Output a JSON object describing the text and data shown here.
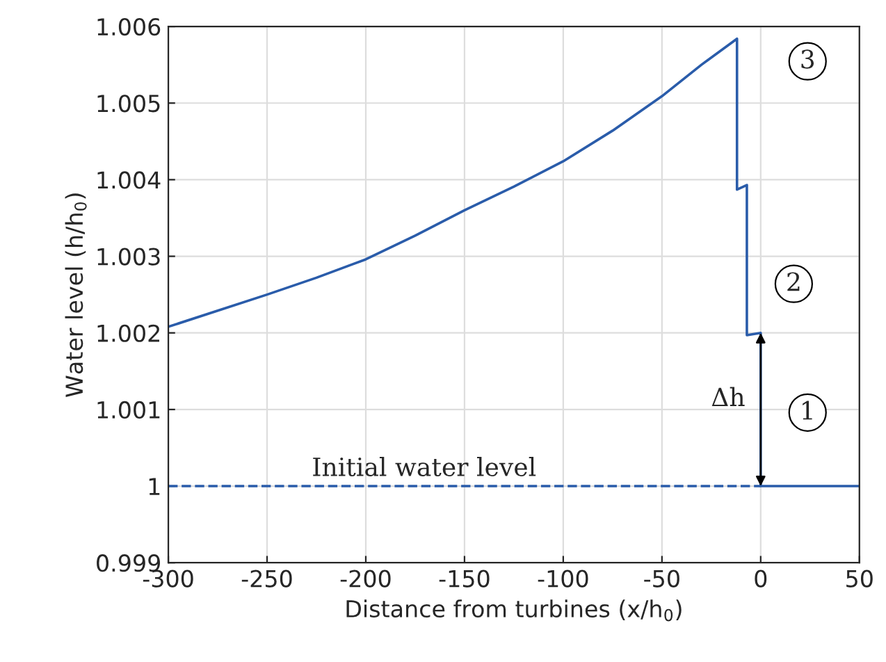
{
  "chart_data": {
    "type": "line",
    "xlabel": "Distance from turbines (x/h$_{0}$)",
    "ylabel": "Water level (h/h$_{0}$)",
    "series": [
      {
        "color": "#2a5caa",
        "line_style": "solid",
        "x": [
          -300,
          -275,
          -250,
          -225,
          -200,
          -175,
          -150,
          -125,
          -100,
          -75,
          -50,
          -30,
          -12,
          -12,
          -7,
          -7,
          0,
          0,
          50
        ],
        "values": [
          1.00208,
          1.00229,
          1.0025,
          1.00272,
          1.00296,
          1.00327,
          1.0036,
          1.00391,
          1.00424,
          1.00464,
          1.00509,
          1.0055,
          1.00584,
          1.00387,
          1.00393,
          1.00197,
          1.002,
          1.0,
          1.0
        ]
      },
      {
        "color": "#2a5caa",
        "line_style": "dashed",
        "x": [
          -300,
          0
        ],
        "values": [
          1.0,
          1.0
        ]
      }
    ],
    "annotations": [
      "Initial water level",
      "Δh",
      "1",
      "2",
      "3"
    ],
    "xlim": [
      -300,
      50
    ],
    "xticks": [
      -300,
      -250,
      -200,
      -150,
      -100,
      -50,
      0,
      50
    ],
    "ylim": [
      0.999,
      1.006
    ],
    "yticks": [
      0.999,
      1,
      1.001,
      1.002,
      1.003,
      1.004,
      1.005,
      1.006
    ],
    "grid": true,
    "legend": false
  }
}
